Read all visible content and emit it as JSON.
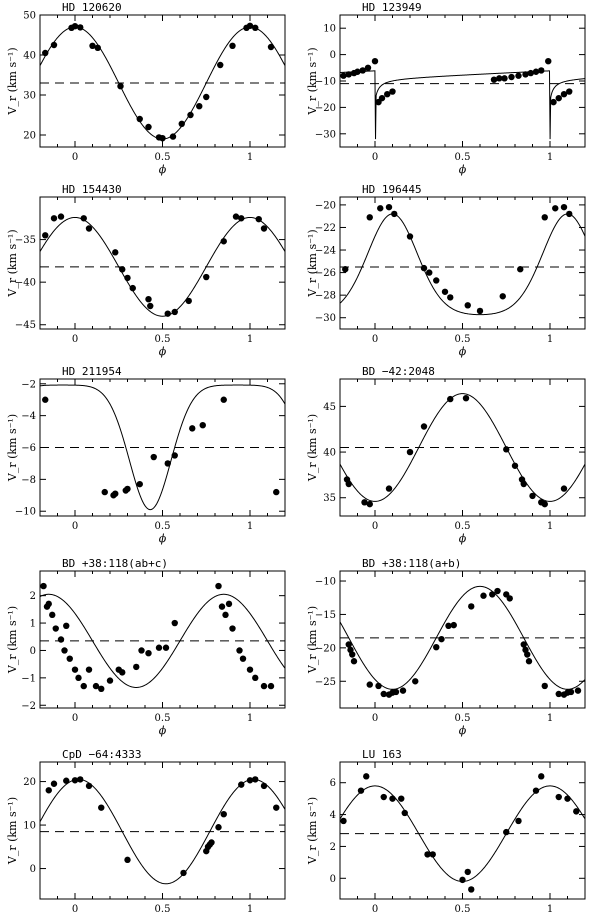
{
  "chart_data": [
    {
      "type": "scatter",
      "title": "HD 120620",
      "xlabel": "ϕ",
      "ylabel": "V_r (km s⁻¹)",
      "xlim": [
        -0.2,
        1.2
      ],
      "ylim": [
        17,
        50
      ],
      "xticks": [
        0,
        0.5,
        1
      ],
      "yticks": [
        20,
        30,
        40,
        50
      ],
      "gamma": 33,
      "curve": {
        "kind": "sine",
        "amp": 14,
        "phase0": 0.0,
        "ecc": 0
      },
      "points": [
        {
          "x": -0.17,
          "y": 40.5
        },
        {
          "x": -0.12,
          "y": 42.5
        },
        {
          "x": -0.02,
          "y": 46.8
        },
        {
          "x": 0.0,
          "y": 47.2
        },
        {
          "x": 0.03,
          "y": 46.9
        },
        {
          "x": 0.1,
          "y": 42.3
        },
        {
          "x": 0.13,
          "y": 41.8
        },
        {
          "x": 0.26,
          "y": 32.2
        },
        {
          "x": 0.37,
          "y": 24.0
        },
        {
          "x": 0.42,
          "y": 22.0
        },
        {
          "x": 0.48,
          "y": 19.4
        },
        {
          "x": 0.5,
          "y": 19.2
        },
        {
          "x": 0.56,
          "y": 19.6
        },
        {
          "x": 0.61,
          "y": 22.8
        },
        {
          "x": 0.66,
          "y": 25.0
        },
        {
          "x": 0.71,
          "y": 27.2
        },
        {
          "x": 0.75,
          "y": 29.5
        },
        {
          "x": 0.83,
          "y": 37.5
        },
        {
          "x": 0.9,
          "y": 42.3
        },
        {
          "x": 0.98,
          "y": 46.8
        },
        {
          "x": 1.0,
          "y": 47.3
        },
        {
          "x": 1.03,
          "y": 46.8
        },
        {
          "x": 1.12,
          "y": 42.0
        }
      ]
    },
    {
      "type": "scatter",
      "title": "HD 123949",
      "xlabel": "ϕ",
      "ylabel": "V_r (km s⁻¹)",
      "xlim": [
        -0.2,
        1.2
      ],
      "ylim": [
        -35,
        15
      ],
      "xticks": [
        0,
        0.5,
        1
      ],
      "yticks": [
        -30,
        -20,
        -10,
        0,
        10
      ],
      "gamma": -11,
      "curve": {
        "kind": "spike",
        "base": -8,
        "drop": -32
      },
      "points": [
        {
          "x": -0.18,
          "y": -8.0
        },
        {
          "x": -0.15,
          "y": -7.5
        },
        {
          "x": -0.12,
          "y": -7.0
        },
        {
          "x": -0.1,
          "y": -6.5
        },
        {
          "x": -0.07,
          "y": -6.0
        },
        {
          "x": -0.04,
          "y": -5.0
        },
        {
          "x": 0.0,
          "y": -2.5
        },
        {
          "x": 0.02,
          "y": -18.0
        },
        {
          "x": 0.04,
          "y": -16.5
        },
        {
          "x": 0.07,
          "y": -15.0
        },
        {
          "x": 0.1,
          "y": -14.0
        },
        {
          "x": 0.68,
          "y": -9.5
        },
        {
          "x": 0.71,
          "y": -9.0
        },
        {
          "x": 0.74,
          "y": -9.0
        },
        {
          "x": 0.78,
          "y": -8.5
        },
        {
          "x": 0.82,
          "y": -8.0
        },
        {
          "x": 0.86,
          "y": -7.5
        },
        {
          "x": 0.89,
          "y": -7.0
        },
        {
          "x": 0.92,
          "y": -6.5
        },
        {
          "x": 0.95,
          "y": -6.0
        },
        {
          "x": 0.99,
          "y": -2.5
        },
        {
          "x": 1.02,
          "y": -18.0
        },
        {
          "x": 1.05,
          "y": -16.5
        },
        {
          "x": 1.08,
          "y": -15.0
        },
        {
          "x": 1.11,
          "y": -14.0
        }
      ]
    },
    {
      "type": "scatter",
      "title": "HD 154430",
      "xlabel": "ϕ",
      "ylabel": "V_r (km s⁻¹)",
      "xlim": [
        -0.2,
        1.2
      ],
      "ylim": [
        -45.5,
        -30
      ],
      "xticks": [
        0,
        0.5,
        1
      ],
      "yticks": [
        -45,
        -40,
        -35
      ],
      "gamma": -38.2,
      "curve": {
        "kind": "sine",
        "amp": 5.8,
        "phase0": 0.0,
        "ecc": 0
      },
      "points": [
        {
          "x": -0.17,
          "y": -34.5
        },
        {
          "x": -0.12,
          "y": -32.5
        },
        {
          "x": -0.08,
          "y": -32.3
        },
        {
          "x": 0.05,
          "y": -32.5
        },
        {
          "x": 0.08,
          "y": -33.7
        },
        {
          "x": 0.23,
          "y": -36.5
        },
        {
          "x": 0.27,
          "y": -38.5
        },
        {
          "x": 0.3,
          "y": -39.5
        },
        {
          "x": 0.33,
          "y": -40.7
        },
        {
          "x": 0.42,
          "y": -42.0
        },
        {
          "x": 0.43,
          "y": -42.8
        },
        {
          "x": 0.53,
          "y": -43.7
        },
        {
          "x": 0.57,
          "y": -43.5
        },
        {
          "x": 0.65,
          "y": -42.2
        },
        {
          "x": 0.75,
          "y": -39.4
        },
        {
          "x": 0.85,
          "y": -35.2
        },
        {
          "x": 0.92,
          "y": -32.3
        },
        {
          "x": 0.95,
          "y": -32.5
        },
        {
          "x": 1.05,
          "y": -32.6
        },
        {
          "x": 1.08,
          "y": -33.7
        }
      ]
    },
    {
      "type": "scatter",
      "title": "HD 196445",
      "xlabel": "ϕ",
      "ylabel": "V_r (km s⁻¹)",
      "xlim": [
        -0.2,
        1.2
      ],
      "ylim": [
        -31,
        -19.3
      ],
      "xticks": [
        0,
        0.5,
        1
      ],
      "yticks": [
        -30,
        -28,
        -26,
        -24,
        -22,
        -20
      ],
      "gamma": -25.5,
      "curve": {
        "kind": "ecc",
        "amp": 4.7,
        "phase0": 0.1
      },
      "points": [
        {
          "x": -0.17,
          "y": -25.7
        },
        {
          "x": -0.03,
          "y": -21.1
        },
        {
          "x": 0.03,
          "y": -20.3
        },
        {
          "x": 0.08,
          "y": -20.2
        },
        {
          "x": 0.11,
          "y": -20.8
        },
        {
          "x": 0.2,
          "y": -22.8
        },
        {
          "x": 0.28,
          "y": -25.6
        },
        {
          "x": 0.31,
          "y": -26.0
        },
        {
          "x": 0.35,
          "y": -26.7
        },
        {
          "x": 0.4,
          "y": -27.7
        },
        {
          "x": 0.43,
          "y": -28.2
        },
        {
          "x": 0.53,
          "y": -28.9
        },
        {
          "x": 0.6,
          "y": -29.4
        },
        {
          "x": 0.73,
          "y": -28.1
        },
        {
          "x": 0.83,
          "y": -25.7
        },
        {
          "x": 0.97,
          "y": -21.1
        },
        {
          "x": 1.03,
          "y": -20.3
        },
        {
          "x": 1.08,
          "y": -20.2
        },
        {
          "x": 1.11,
          "y": -20.8
        }
      ]
    },
    {
      "type": "scatter",
      "title": "HD 211954",
      "xlabel": "ϕ",
      "ylabel": "V_r (km s⁻¹)",
      "xlim": [
        -0.2,
        1.2
      ],
      "ylim": [
        -10.3,
        -1.7
      ],
      "xticks": [
        0,
        0.5,
        1
      ],
      "yticks": [
        -10,
        -8,
        -6,
        -4,
        -2
      ],
      "gamma": -6,
      "curve": {
        "kind": "ecc2",
        "amp": 3.4,
        "phase0": 0.93
      },
      "points": [
        {
          "x": -0.17,
          "y": -3.0
        },
        {
          "x": 0.17,
          "y": -8.8
        },
        {
          "x": 0.22,
          "y": -9.0
        },
        {
          "x": 0.23,
          "y": -8.9
        },
        {
          "x": 0.29,
          "y": -8.7
        },
        {
          "x": 0.3,
          "y": -8.6
        },
        {
          "x": 0.37,
          "y": -8.3
        },
        {
          "x": 0.45,
          "y": -6.6
        },
        {
          "x": 0.53,
          "y": -7.0
        },
        {
          "x": 0.57,
          "y": -6.5
        },
        {
          "x": 0.67,
          "y": -4.8
        },
        {
          "x": 0.73,
          "y": -4.6
        },
        {
          "x": 0.85,
          "y": -3.0
        },
        {
          "x": 1.15,
          "y": -8.8
        }
      ]
    },
    {
      "type": "scatter",
      "title": "BD −42:2048",
      "xlabel": "ϕ",
      "ylabel": "V_r (km s⁻¹)",
      "xlim": [
        -0.2,
        1.2
      ],
      "ylim": [
        33,
        48
      ],
      "xticks": [
        0,
        0.5,
        1
      ],
      "yticks": [
        35,
        40,
        45
      ],
      "gamma": 40.5,
      "curve": {
        "kind": "sine",
        "amp": 5.9,
        "phase0": 0.5,
        "ecc": 0
      },
      "points": [
        {
          "x": -0.16,
          "y": 37.0
        },
        {
          "x": -0.15,
          "y": 36.5
        },
        {
          "x": -0.06,
          "y": 34.5
        },
        {
          "x": -0.03,
          "y": 34.3
        },
        {
          "x": 0.08,
          "y": 36.0
        },
        {
          "x": 0.2,
          "y": 40.0
        },
        {
          "x": 0.28,
          "y": 42.8
        },
        {
          "x": 0.43,
          "y": 45.8
        },
        {
          "x": 0.52,
          "y": 45.9
        },
        {
          "x": 0.75,
          "y": 40.3
        },
        {
          "x": 0.8,
          "y": 38.5
        },
        {
          "x": 0.84,
          "y": 37.0
        },
        {
          "x": 0.85,
          "y": 36.5
        },
        {
          "x": 0.9,
          "y": 35.2
        },
        {
          "x": 0.95,
          "y": 34.5
        },
        {
          "x": 0.97,
          "y": 34.3
        },
        {
          "x": 1.08,
          "y": 36.0
        }
      ]
    },
    {
      "type": "scatter",
      "title": "BD +38:118(ab+c)",
      "xlabel": "ϕ",
      "ylabel": "V_r (km s⁻¹)",
      "xlim": [
        -0.2,
        1.2
      ],
      "ylim": [
        -2.1,
        2.9
      ],
      "xticks": [
        0,
        0.5,
        1
      ],
      "yticks": [
        -2,
        -1,
        0,
        1,
        2
      ],
      "gamma": 0.35,
      "curve": {
        "kind": "sine",
        "amp": 1.7,
        "phase0": 0.85,
        "ecc": 0
      },
      "points": [
        {
          "x": -0.18,
          "y": 2.35
        },
        {
          "x": -0.16,
          "y": 1.6
        },
        {
          "x": -0.15,
          "y": 1.7
        },
        {
          "x": -0.13,
          "y": 1.3
        },
        {
          "x": -0.11,
          "y": 0.8
        },
        {
          "x": -0.08,
          "y": 0.4
        },
        {
          "x": -0.06,
          "y": 0.0
        },
        {
          "x": -0.05,
          "y": 0.9
        },
        {
          "x": -0.03,
          "y": -0.3
        },
        {
          "x": 0.0,
          "y": -0.7
        },
        {
          "x": 0.02,
          "y": -1.0
        },
        {
          "x": 0.05,
          "y": -1.3
        },
        {
          "x": 0.08,
          "y": -0.7
        },
        {
          "x": 0.12,
          "y": -1.3
        },
        {
          "x": 0.15,
          "y": -1.4
        },
        {
          "x": 0.2,
          "y": -1.1
        },
        {
          "x": 0.25,
          "y": -0.7
        },
        {
          "x": 0.27,
          "y": -0.8
        },
        {
          "x": 0.35,
          "y": -0.6
        },
        {
          "x": 0.38,
          "y": 0.0
        },
        {
          "x": 0.42,
          "y": -0.1
        },
        {
          "x": 0.48,
          "y": 0.1
        },
        {
          "x": 0.52,
          "y": 0.1
        },
        {
          "x": 0.57,
          "y": 1.0
        },
        {
          "x": 0.82,
          "y": 2.35
        },
        {
          "x": 0.84,
          "y": 1.6
        },
        {
          "x": 0.86,
          "y": 1.3
        },
        {
          "x": 0.88,
          "y": 1.7
        },
        {
          "x": 0.9,
          "y": 0.8
        },
        {
          "x": 0.94,
          "y": 0.0
        },
        {
          "x": 0.96,
          "y": -0.3
        },
        {
          "x": 1.0,
          "y": -0.7
        },
        {
          "x": 1.03,
          "y": -1.0
        },
        {
          "x": 1.08,
          "y": -1.3
        },
        {
          "x": 1.12,
          "y": -1.3
        }
      ]
    },
    {
      "type": "scatter",
      "title": "BD +38:118(a+b)",
      "xlabel": "ϕ",
      "ylabel": "V_r (km s⁻¹)",
      "xlim": [
        -0.2,
        1.2
      ],
      "ylim": [
        -29,
        -8.5
      ],
      "xticks": [
        0,
        0.5,
        1
      ],
      "yticks": [
        -25,
        -20,
        -15,
        -10
      ],
      "gamma": -18.5,
      "curve": {
        "kind": "sine",
        "amp": 7.7,
        "phase0": 0.6,
        "ecc": 0
      },
      "points": [
        {
          "x": -0.15,
          "y": -19.5
        },
        {
          "x": -0.14,
          "y": -20.3
        },
        {
          "x": -0.13,
          "y": -21.0
        },
        {
          "x": -0.12,
          "y": -22.0
        },
        {
          "x": -0.03,
          "y": -25.5
        },
        {
          "x": 0.02,
          "y": -25.7
        },
        {
          "x": 0.05,
          "y": -26.9
        },
        {
          "x": 0.08,
          "y": -27.0
        },
        {
          "x": 0.1,
          "y": -26.7
        },
        {
          "x": 0.12,
          "y": -26.6
        },
        {
          "x": 0.16,
          "y": -26.4
        },
        {
          "x": 0.23,
          "y": -25.0
        },
        {
          "x": 0.35,
          "y": -19.9
        },
        {
          "x": 0.38,
          "y": -18.7
        },
        {
          "x": 0.42,
          "y": -16.7
        },
        {
          "x": 0.45,
          "y": -16.6
        },
        {
          "x": 0.55,
          "y": -13.8
        },
        {
          "x": 0.62,
          "y": -12.2
        },
        {
          "x": 0.67,
          "y": -12.0
        },
        {
          "x": 0.7,
          "y": -11.5
        },
        {
          "x": 0.75,
          "y": -12.0
        },
        {
          "x": 0.77,
          "y": -12.6
        },
        {
          "x": 0.85,
          "y": -19.5
        },
        {
          "x": 0.86,
          "y": -20.3
        },
        {
          "x": 0.87,
          "y": -21.0
        },
        {
          "x": 0.88,
          "y": -22.0
        },
        {
          "x": 0.97,
          "y": -25.7
        },
        {
          "x": 1.05,
          "y": -26.9
        },
        {
          "x": 1.08,
          "y": -27.0
        },
        {
          "x": 1.1,
          "y": -26.7
        },
        {
          "x": 1.12,
          "y": -26.6
        },
        {
          "x": 1.16,
          "y": -26.4
        }
      ]
    },
    {
      "type": "scatter",
      "title": "CpD −64:4333",
      "xlabel": "ϕ",
      "ylabel": "V_r (km s⁻¹)",
      "xlim": [
        -0.2,
        1.2
      ],
      "ylim": [
        -7,
        24.5
      ],
      "xticks": [
        0,
        0.5,
        1
      ],
      "yticks": [
        0,
        10,
        20
      ],
      "gamma": 8.5,
      "curve": {
        "kind": "sine",
        "amp": 12,
        "phase0": 0.02,
        "ecc": 0
      },
      "points": [
        {
          "x": -0.15,
          "y": 18.0
        },
        {
          "x": -0.12,
          "y": 19.5
        },
        {
          "x": -0.05,
          "y": 20.2
        },
        {
          "x": 0.0,
          "y": 20.3
        },
        {
          "x": 0.03,
          "y": 20.5
        },
        {
          "x": 0.08,
          "y": 19.0
        },
        {
          "x": 0.15,
          "y": 14.0
        },
        {
          "x": 0.3,
          "y": 2.0
        },
        {
          "x": 0.62,
          "y": -1.0
        },
        {
          "x": 0.75,
          "y": 4.0
        },
        {
          "x": 0.76,
          "y": 5.0
        },
        {
          "x": 0.77,
          "y": 5.5
        },
        {
          "x": 0.78,
          "y": 6.0
        },
        {
          "x": 0.82,
          "y": 9.5
        },
        {
          "x": 0.85,
          "y": 12.5
        },
        {
          "x": 0.95,
          "y": 19.3
        },
        {
          "x": 1.0,
          "y": 20.3
        },
        {
          "x": 1.03,
          "y": 20.5
        },
        {
          "x": 1.08,
          "y": 19.0
        },
        {
          "x": 1.15,
          "y": 14.0
        }
      ]
    },
    {
      "type": "scatter",
      "title": "LU 163",
      "xlabel": "ϕ",
      "ylabel": "V_r (km s⁻¹)",
      "xlim": [
        -0.2,
        1.2
      ],
      "ylim": [
        -1.3,
        7.3
      ],
      "xticks": [
        0,
        0.5,
        1
      ],
      "yticks": [
        0,
        2,
        4,
        6
      ],
      "gamma": 2.8,
      "curve": {
        "kind": "sine",
        "amp": 3.0,
        "phase0": 0.0,
        "ecc": 0
      },
      "points": [
        {
          "x": -0.18,
          "y": 3.6
        },
        {
          "x": -0.08,
          "y": 5.5
        },
        {
          "x": -0.05,
          "y": 6.4
        },
        {
          "x": 0.05,
          "y": 5.1
        },
        {
          "x": 0.1,
          "y": 5.0
        },
        {
          "x": 0.15,
          "y": 5.0
        },
        {
          "x": 0.17,
          "y": 4.1
        },
        {
          "x": 0.3,
          "y": 1.5
        },
        {
          "x": 0.33,
          "y": 1.5
        },
        {
          "x": 0.5,
          "y": -0.1
        },
        {
          "x": 0.53,
          "y": 0.4
        },
        {
          "x": 0.55,
          "y": -0.7
        },
        {
          "x": 0.75,
          "y": 2.9
        },
        {
          "x": 0.82,
          "y": 3.6
        },
        {
          "x": 0.92,
          "y": 5.5
        },
        {
          "x": 0.95,
          "y": 6.4
        },
        {
          "x": 1.05,
          "y": 5.1
        },
        {
          "x": 1.1,
          "y": 5.0
        },
        {
          "x": 1.15,
          "y": 4.2
        }
      ]
    }
  ]
}
